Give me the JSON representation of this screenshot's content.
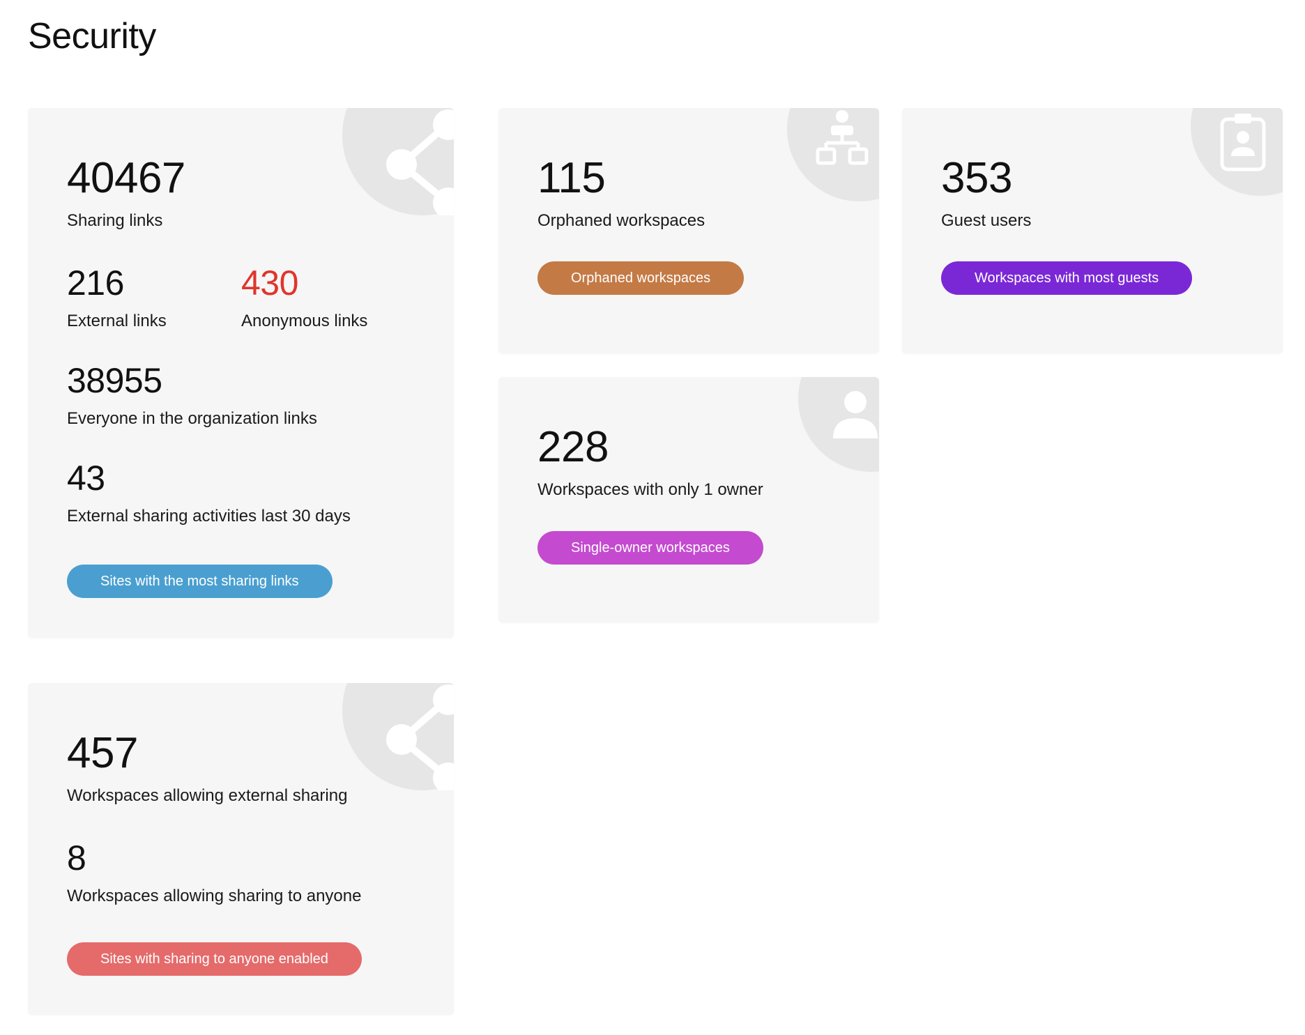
{
  "page": {
    "title": "Security"
  },
  "cards": {
    "sharing": {
      "icon": "share-icon",
      "total": {
        "value": "40467",
        "label": "Sharing links"
      },
      "external": {
        "value": "216",
        "label": "External links"
      },
      "anonymous": {
        "value": "430",
        "label": "Anonymous links",
        "color": "#e0352b"
      },
      "everyone": {
        "value": "38955",
        "label": "Everyone in the organization links"
      },
      "activities": {
        "value": "43",
        "label": "External sharing activities last 30 days"
      },
      "button": {
        "label": "Sites with the most sharing links",
        "color": "#4a9fd0"
      }
    },
    "orphaned": {
      "icon": "hierarchy-icon",
      "value": "115",
      "label": "Orphaned workspaces",
      "button": {
        "label": "Orphaned workspaces",
        "color": "#c47a45"
      }
    },
    "guests": {
      "icon": "id-badge-icon",
      "value": "353",
      "label": "Guest users",
      "button": {
        "label": "Workspaces with most guests",
        "color": "#7a28d6"
      }
    },
    "single_owner": {
      "icon": "user-icon",
      "value": "228",
      "label": "Workspaces with only 1 owner",
      "button": {
        "label": "Single-owner workspaces",
        "color": "#c44ad0"
      }
    },
    "external_sharing": {
      "icon": "share-icon",
      "external": {
        "value": "457",
        "label": "Workspaces allowing external sharing"
      },
      "anyone": {
        "value": "8",
        "label": "Workspaces allowing sharing to anyone"
      },
      "button": {
        "label": "Sites with sharing to anyone enabled",
        "color": "#e56a6a"
      }
    }
  }
}
